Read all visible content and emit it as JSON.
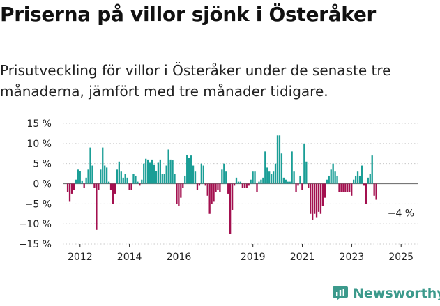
{
  "chart_data": {
    "type": "bar",
    "title": "Priserna på villor sjönk i Österåker",
    "subtitle": "Prisutveckling för villor i Österåker under de senaste tre månaderna, jämfört med tre månader tidigare.",
    "ylim": [
      -15,
      15
    ],
    "y_ticks": [
      "15 %",
      "10 %",
      "5 %",
      "0 %",
      "−5 %",
      "−10 %",
      "−15 %"
    ],
    "y_tick_values": [
      15,
      10,
      5,
      0,
      -5,
      -10,
      -15
    ],
    "x_ticks": [
      {
        "label": "2012",
        "x": 2012.0
      },
      {
        "label": "2014",
        "x": 2014.0
      },
      {
        "label": "2016",
        "x": 2016.0
      },
      {
        "label": "2019",
        "x": 2019.0
      },
      {
        "label": "2021",
        "x": 2021.0
      },
      {
        "label": "2023",
        "x": 2023.0
      },
      {
        "label": "2025",
        "x": 2025.0
      }
    ],
    "x_range": [
      2011.3,
      2025.7
    ],
    "start_year": 2011.5,
    "step": 0.0833,
    "positive_color": "#1a9e96",
    "negative_color": "#a3104f",
    "values": [
      -2,
      -4.5,
      -2.5,
      -1.5,
      1,
      3.5,
      3.2,
      0.8,
      -1,
      1.5,
      3.5,
      9,
      4.5,
      -1,
      -11.5,
      -1.5,
      3.5,
      9,
      4.5,
      4,
      0.5,
      -1.5,
      -5,
      -2.5,
      3.5,
      5.5,
      3,
      1.5,
      2.5,
      1.5,
      -1.5,
      -1.5,
      2.5,
      2,
      0.5,
      -0.5,
      1,
      5,
      6.2,
      6,
      5.2,
      6,
      4.8,
      3.2,
      5.2,
      6,
      2.5,
      2.5,
      4.5,
      8.5,
      6,
      5.8,
      2.5,
      -5,
      -5.5,
      -3.5,
      -1,
      2,
      7.2,
      6.5,
      7,
      4.5,
      3,
      -1.5,
      -0.5,
      5,
      4.5,
      -0.5,
      -3,
      -7.5,
      -5,
      -4.5,
      -2,
      -1.5,
      -2,
      3.5,
      5,
      3,
      -2.5,
      -12.5,
      -6.5,
      -0.5,
      1.5,
      0.5,
      0.5,
      -1,
      -1,
      -1,
      -0.5,
      1,
      3,
      3,
      -2,
      0.5,
      1,
      1.5,
      8,
      4,
      3,
      2.5,
      3,
      5,
      12,
      12,
      7.5,
      1.5,
      1,
      0.5,
      0.5,
      8,
      3,
      -2,
      -0.5,
      2,
      -1.5,
      10,
      5.5,
      -1,
      -7.5,
      -9,
      -7.5,
      -8.5,
      -7,
      -7.5,
      -5.5,
      -3.5,
      1,
      2,
      3.5,
      5,
      3,
      2,
      -2,
      -2,
      -2,
      -2,
      -2,
      -2,
      -3,
      1,
      2,
      3,
      2,
      4.5,
      -0.5,
      -5,
      1.5,
      2.5,
      7,
      -3,
      -4
    ],
    "annotation": {
      "label": "−4 %",
      "x": 2024.45,
      "y": -7.3
    }
  },
  "brand": {
    "name": "Newsworthy",
    "icon": "newsworthy-chart-icon"
  }
}
